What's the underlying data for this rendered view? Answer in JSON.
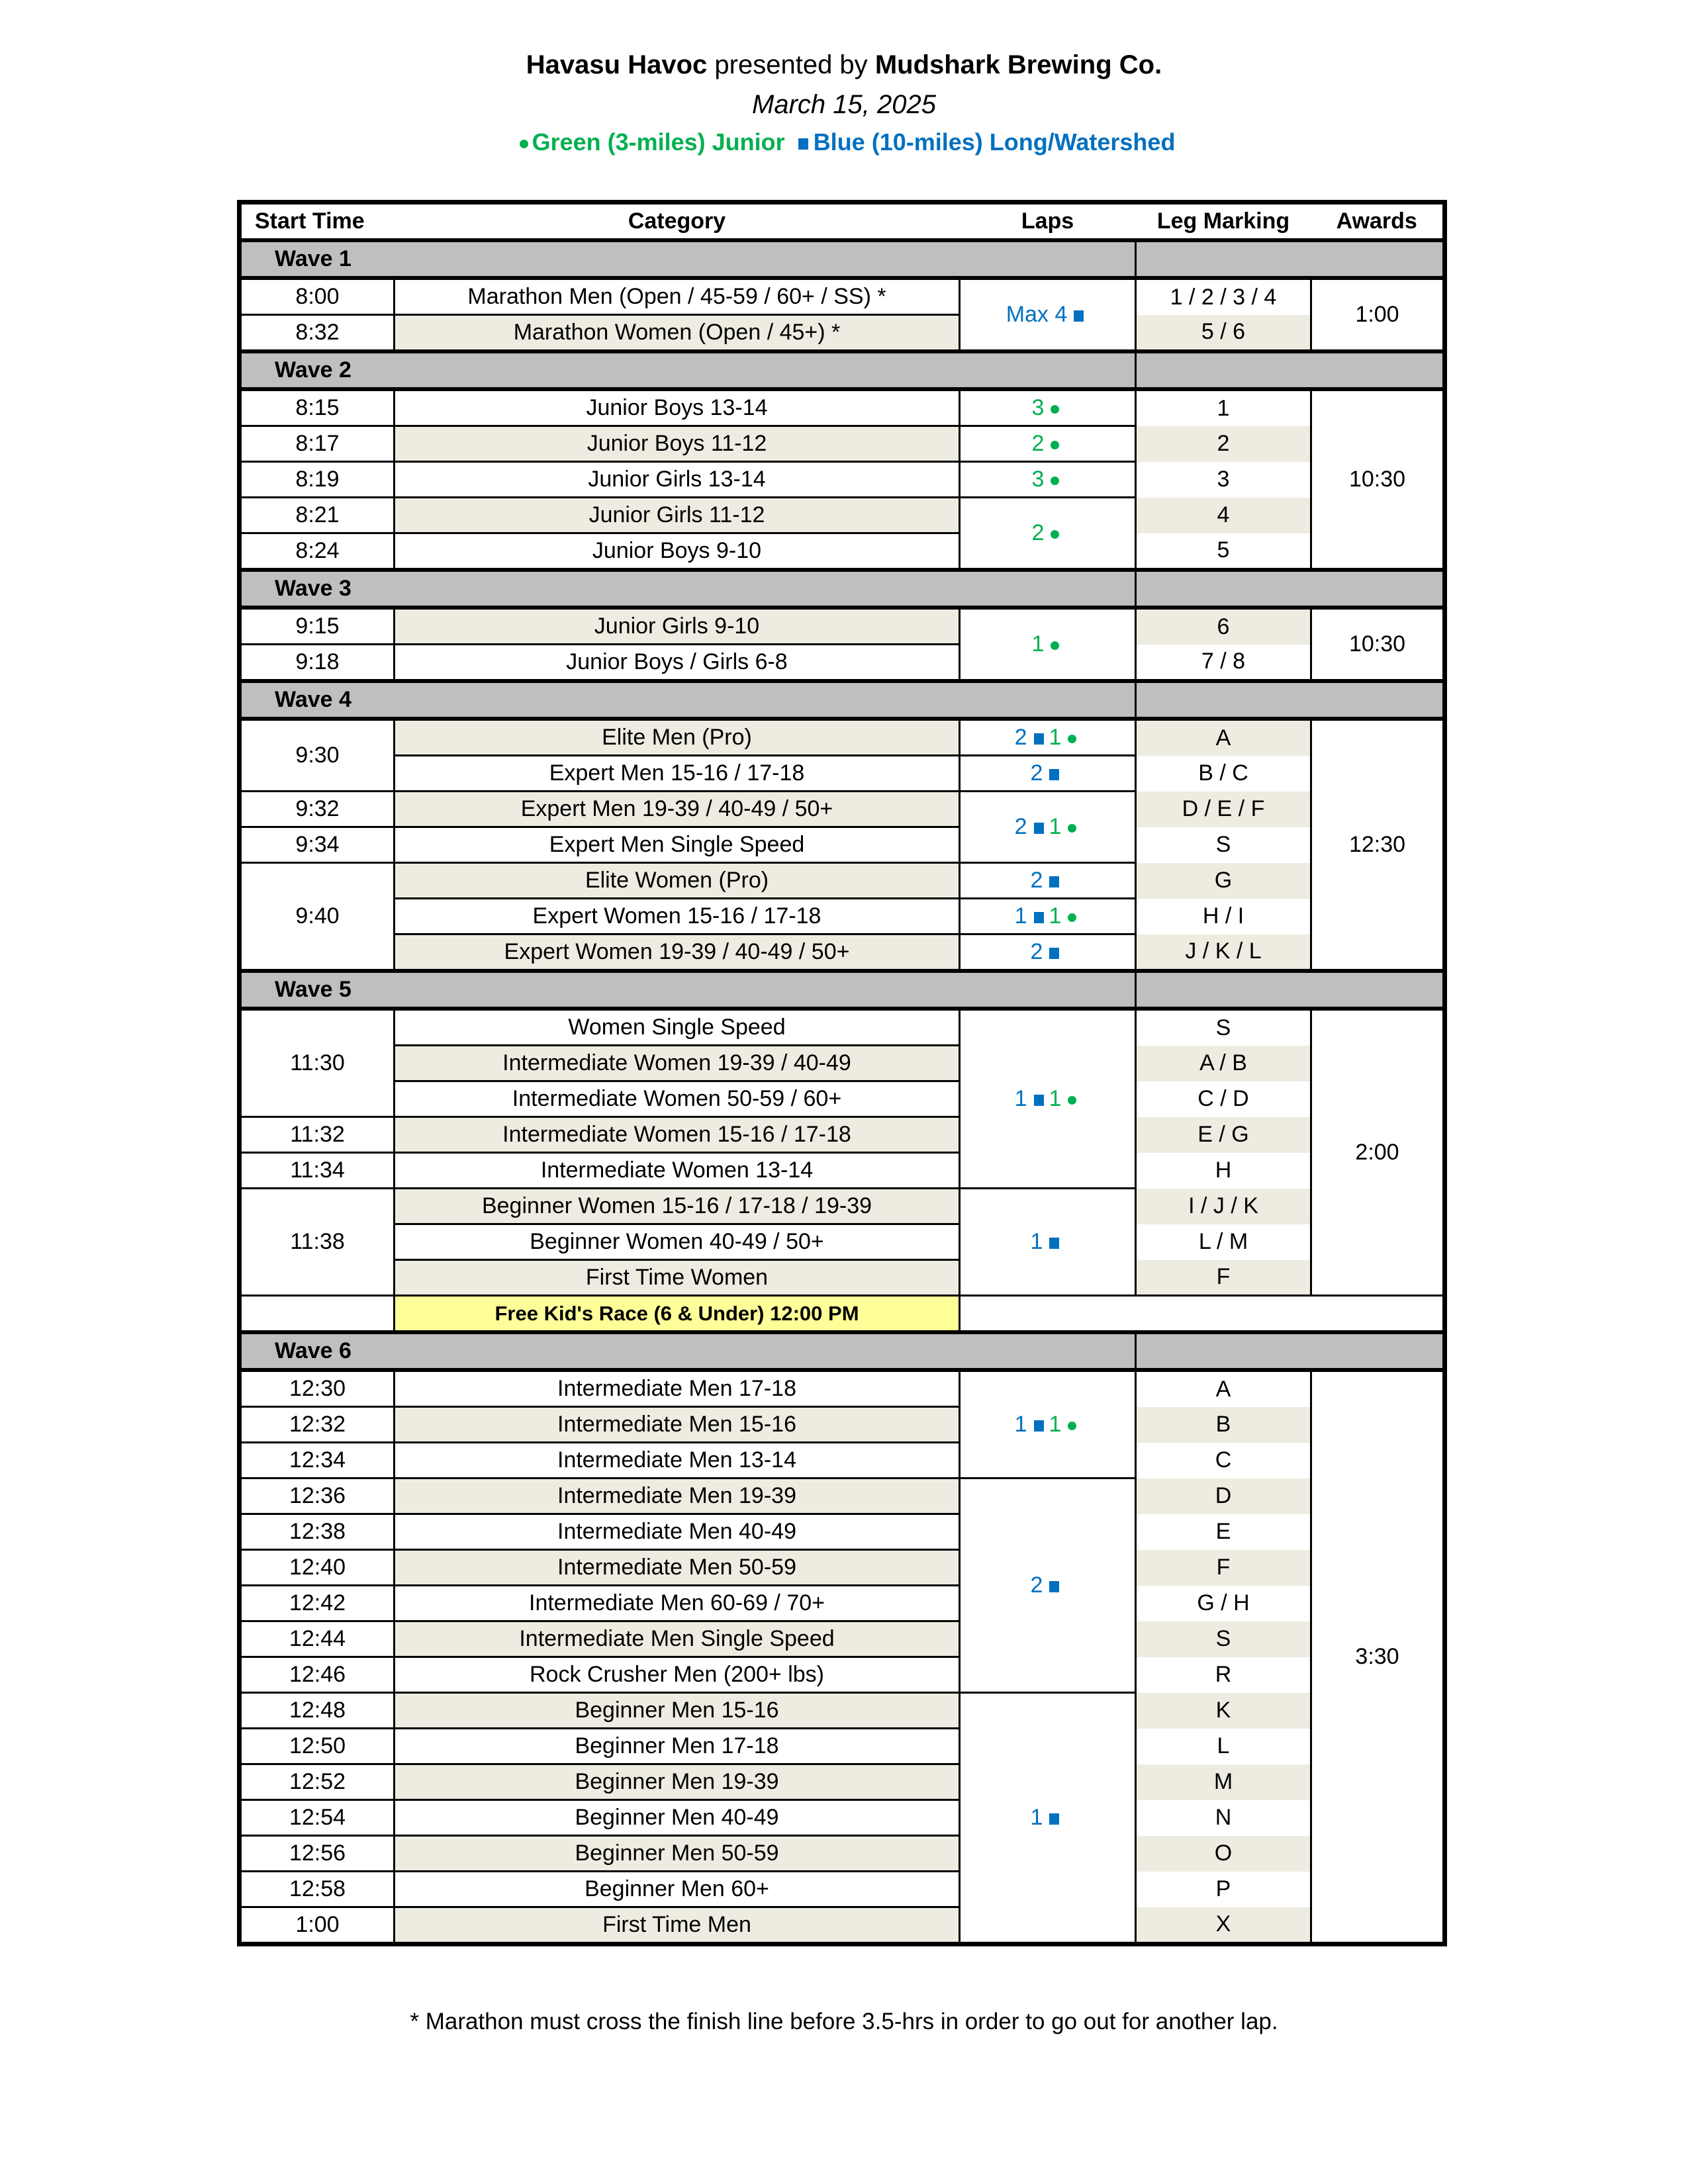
{
  "header": {
    "title_bold1": "Havasu Havoc",
    "title_mid": "presented by",
    "title_bold2": "Mudshark Brewing Co.",
    "date": "March 15, 2025",
    "legend_green": "Green (3-miles) Junior",
    "legend_blue": "Blue (10-miles) Long/Watershed"
  },
  "colors": {
    "green": "#00B050",
    "blue": "#0070C0",
    "wave_bg": "#BFBFBF",
    "shade": "#EEECE1",
    "highlight": "#FFFF99"
  },
  "columns": [
    "Start Time",
    "Category",
    "Laps",
    "Leg Marking",
    "Awards"
  ],
  "waves": [
    {
      "label": "Wave 1",
      "rows": [
        {
          "time": "8:00",
          "category": "Marathon Men (Open / 45-59 / 60+ / SS) *",
          "laps": [
            {
              "n": "Max 4",
              "c": "blue"
            }
          ],
          "laps_span": 2,
          "leg": "1 / 2 / 3 / 4",
          "awards": "1:00",
          "awards_span": 2
        },
        {
          "time": "8:32",
          "category": "Marathon Women (Open / 45+) *",
          "leg": "5 / 6",
          "shade": true
        }
      ]
    },
    {
      "label": "Wave 2",
      "rows": [
        {
          "time": "8:15",
          "category": "Junior Boys 13-14",
          "laps": [
            {
              "n": "3",
              "c": "green"
            }
          ],
          "leg": "1",
          "awards": "10:30",
          "awards_span": 5
        },
        {
          "time": "8:17",
          "category": "Junior Boys 11-12",
          "laps": [
            {
              "n": "2",
              "c": "green"
            }
          ],
          "leg": "2",
          "shade": true
        },
        {
          "time": "8:19",
          "category": "Junior Girls 13-14",
          "laps": [
            {
              "n": "3",
              "c": "green"
            }
          ],
          "leg": "3"
        },
        {
          "time": "8:21",
          "category": "Junior Girls 11-12",
          "laps": [
            {
              "n": "2",
              "c": "green"
            }
          ],
          "laps_span": 2,
          "leg": "4",
          "shade": true
        },
        {
          "time": "8:24",
          "category": "Junior Boys 9-10",
          "leg": "5"
        }
      ]
    },
    {
      "label": "Wave 3",
      "rows": [
        {
          "time": "9:15",
          "category": "Junior Girls 9-10",
          "laps": [
            {
              "n": "1",
              "c": "green"
            }
          ],
          "laps_span": 2,
          "leg": "6",
          "awards": "10:30",
          "awards_span": 2,
          "shade": true
        },
        {
          "time": "9:18",
          "category": "Junior Boys / Girls 6-8",
          "leg": "7 / 8"
        }
      ]
    },
    {
      "label": "Wave 4",
      "rows": [
        {
          "time": "9:30",
          "time_span": 2,
          "category": "Elite Men (Pro)",
          "laps": [
            {
              "n": "2",
              "c": "blue"
            },
            {
              "n": "1",
              "c": "green"
            }
          ],
          "leg": "A",
          "awards": "12:30",
          "awards_span": 7,
          "shade": true
        },
        {
          "category": "Expert Men 15-16 / 17-18",
          "laps": [
            {
              "n": "2",
              "c": "blue"
            }
          ],
          "leg": "B / C"
        },
        {
          "time": "9:32",
          "category": "Expert Men 19-39 / 40-49 / 50+",
          "laps": [
            {
              "n": "2",
              "c": "blue"
            },
            {
              "n": "1",
              "c": "green"
            }
          ],
          "laps_span": 2,
          "leg": "D / E / F",
          "shade": true
        },
        {
          "time": "9:34",
          "category": "Expert Men Single Speed",
          "leg": "S"
        },
        {
          "time": "9:40",
          "time_span": 3,
          "category": "Elite Women (Pro)",
          "laps": [
            {
              "n": "2",
              "c": "blue"
            }
          ],
          "leg": "G",
          "shade": true
        },
        {
          "category": "Expert Women 15-16 / 17-18",
          "laps": [
            {
              "n": "1",
              "c": "blue"
            },
            {
              "n": "1",
              "c": "green"
            }
          ],
          "leg": "H / I"
        },
        {
          "category": "Expert Women 19-39 / 40-49 / 50+",
          "laps": [
            {
              "n": "2",
              "c": "blue"
            }
          ],
          "leg": "J / K / L",
          "shade": true
        }
      ]
    },
    {
      "label": "Wave 5",
      "rows": [
        {
          "time": "11:30",
          "time_span": 3,
          "category": "Women Single Speed",
          "laps": [
            {
              "n": "1",
              "c": "blue"
            },
            {
              "n": "1",
              "c": "green"
            }
          ],
          "laps_span": 5,
          "leg": "S",
          "awards": "2:00",
          "awards_span": 8
        },
        {
          "category": "Intermediate Women 19-39 / 40-49",
          "leg": "A / B",
          "shade": true
        },
        {
          "category": "Intermediate Women 50-59 / 60+",
          "leg": "C / D"
        },
        {
          "time": "11:32",
          "category": "Intermediate Women 15-16 / 17-18",
          "leg": "E / G",
          "shade": true
        },
        {
          "time": "11:34",
          "category": "Intermediate Women 13-14",
          "leg": "H"
        },
        {
          "time": "11:38",
          "time_span": 3,
          "category": "Beginner Women 15-16 / 17-18 / 19-39",
          "laps": [
            {
              "n": "1",
              "c": "blue"
            }
          ],
          "laps_span": 3,
          "leg": "I / J / K",
          "shade": true
        },
        {
          "category": "Beginner Women 40-49 / 50+",
          "leg": "L / M"
        },
        {
          "category": "First Time Women",
          "leg": "F",
          "shade": true
        }
      ]
    }
  ],
  "kids_race": "Free Kid's Race (6 & Under) 12:00 PM",
  "wave6": {
    "label": "Wave 6",
    "rows": [
      {
        "time": "12:30",
        "category": "Intermediate Men 17-18",
        "laps": [
          {
            "n": "1",
            "c": "blue"
          },
          {
            "n": "1",
            "c": "green"
          }
        ],
        "laps_span": 3,
        "leg": "A",
        "awards": "3:30",
        "awards_span": 16
      },
      {
        "time": "12:32",
        "category": "Intermediate Men 15-16",
        "leg": "B",
        "shade": true
      },
      {
        "time": "12:34",
        "category": "Intermediate Men 13-14",
        "leg": "C"
      },
      {
        "time": "12:36",
        "category": "Intermediate Men 19-39",
        "laps": [
          {
            "n": "2",
            "c": "blue"
          }
        ],
        "laps_span": 6,
        "leg": "D",
        "shade": true
      },
      {
        "time": "12:38",
        "category": "Intermediate Men 40-49",
        "leg": "E"
      },
      {
        "time": "12:40",
        "category": "Intermediate Men 50-59",
        "leg": "F",
        "shade": true
      },
      {
        "time": "12:42",
        "category": "Intermediate Men 60-69 / 70+",
        "leg": "G / H"
      },
      {
        "time": "12:44",
        "category": "Intermediate Men Single Speed",
        "leg": "S",
        "shade": true
      },
      {
        "time": "12:46",
        "category": "Rock Crusher Men (200+ lbs)",
        "leg": "R"
      },
      {
        "time": "12:48",
        "category": "Beginner Men 15-16",
        "laps": [
          {
            "n": "1",
            "c": "blue"
          }
        ],
        "laps_span": 7,
        "leg": "K",
        "shade": true
      },
      {
        "time": "12:50",
        "category": "Beginner Men 17-18",
        "leg": "L"
      },
      {
        "time": "12:52",
        "category": "Beginner Men 19-39",
        "leg": "M",
        "shade": true
      },
      {
        "time": "12:54",
        "category": "Beginner Men 40-49",
        "leg": "N"
      },
      {
        "time": "12:56",
        "category": "Beginner Men 50-59",
        "leg": "O",
        "shade": true
      },
      {
        "time": "12:58",
        "category": "Beginner Men 60+",
        "leg": "P"
      },
      {
        "time": "1:00",
        "category": "First Time Men",
        "leg": "X",
        "shade": true
      }
    ]
  },
  "footnote": "* Marathon must cross the finish line before 3.5-hrs in order to go out for another lap."
}
